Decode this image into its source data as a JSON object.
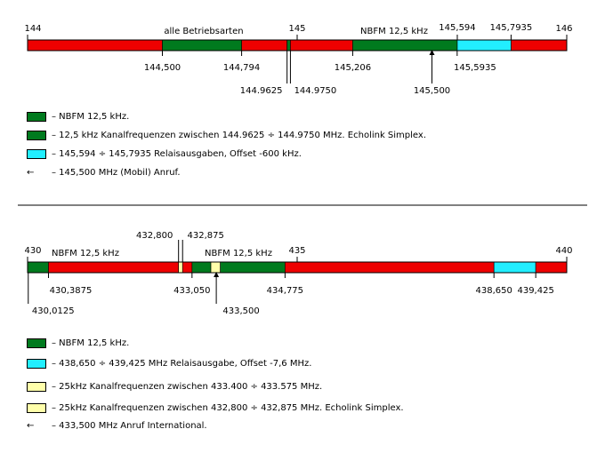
{
  "colors": {
    "red": "#ee0000",
    "green": "#007a1e",
    "cyan": "#22eeff",
    "yellow": "#ffffaa",
    "border": "#000000"
  },
  "band_2m": {
    "range": [
      144,
      146
    ],
    "top_labels": [
      "144",
      "145",
      "146"
    ],
    "segments": [
      {
        "from": 144,
        "to": 144.5,
        "color": "red"
      },
      {
        "from": 144.5,
        "to": 144.794,
        "color": "green"
      },
      {
        "from": 144.794,
        "to": 144.9625,
        "color": "red"
      },
      {
        "from": 144.9625,
        "to": 144.975,
        "color": "green"
      },
      {
        "from": 144.975,
        "to": 145.206,
        "color": "red"
      },
      {
        "from": 145.206,
        "to": 145.594,
        "color": "green"
      },
      {
        "from": 145.594,
        "to": 145.7935,
        "color": "cyan"
      },
      {
        "from": 145.7935,
        "to": 146,
        "color": "red"
      }
    ],
    "mode_labels": [
      "alle Betriebsarten",
      "NBFM 12,5 kHz"
    ],
    "top_value_labels": [
      "145,594",
      "145,7935"
    ],
    "bottom_labels": [
      "144,500",
      "144,794",
      "145,206",
      "145,5935",
      "145,500"
    ],
    "lower_labels": [
      "144.9625",
      "144.9750"
    ]
  },
  "legend_2m": [
    {
      "swatch": "green",
      "text": "– NBFM 12,5 kHz."
    },
    {
      "swatch": "green",
      "text": "– 12,5 kHz Kanalfrequenzen zwischen 144.9625 ÷ 144.9750 MHz. Echolink Simplex."
    },
    {
      "swatch": "cyan",
      "text": "– 145,594 ÷ 145,7935 Relaisausgaben, Offset -600 kHz."
    },
    {
      "swatch": "arrow",
      "text": "– 145,500 MHz (Mobil) Anruf."
    }
  ],
  "band_70cm": {
    "range": [
      430,
      440
    ],
    "top_labels": [
      "430",
      "435",
      "440"
    ],
    "segments": [
      {
        "from": 430,
        "to": 430.3875,
        "color": "green"
      },
      {
        "from": 430.3875,
        "to": 432.8,
        "color": "red"
      },
      {
        "from": 432.8,
        "to": 432.875,
        "color": "yellow"
      },
      {
        "from": 432.875,
        "to": 433.05,
        "color": "red"
      },
      {
        "from": 433.05,
        "to": 433.4,
        "color": "green"
      },
      {
        "from": 433.4,
        "to": 433.575,
        "color": "yellow"
      },
      {
        "from": 433.575,
        "to": 434.775,
        "color": "green"
      },
      {
        "from": 434.775,
        "to": 438.65,
        "color": "red"
      },
      {
        "from": 438.65,
        "to": 439.425,
        "color": "cyan"
      },
      {
        "from": 439.425,
        "to": 440,
        "color": "red"
      }
    ],
    "mode_labels": [
      "NBFM 12,5 kHz",
      "NBFM 12,5 kHz"
    ],
    "top_value_labels": [
      "432,800",
      "432,875"
    ],
    "bottom_labels": [
      "430,3875",
      "433,050",
      "434,775",
      "438,650",
      "439,425"
    ],
    "lower_labels": [
      "430,0125",
      "433,500"
    ]
  },
  "legend_70cm": [
    {
      "swatch": "green",
      "text": "– NBFM 12,5 kHz."
    },
    {
      "swatch": "cyan",
      "text": "– 438,650 ÷ 439,425 MHz Relaisausgabe, Offset -7,6 MHz."
    },
    {
      "swatch": "yellow",
      "text": "– 25kHz Kanalfrequenzen zwischen 433.400 ÷ 433.575 MHz."
    },
    {
      "swatch": "yellow",
      "text": "– 25kHz Kanalfrequenzen zwischen 432,800 ÷ 432,875 MHz. Echolink Simplex."
    },
    {
      "swatch": "arrow",
      "text": "– 433,500 MHz Anruf International."
    }
  ]
}
